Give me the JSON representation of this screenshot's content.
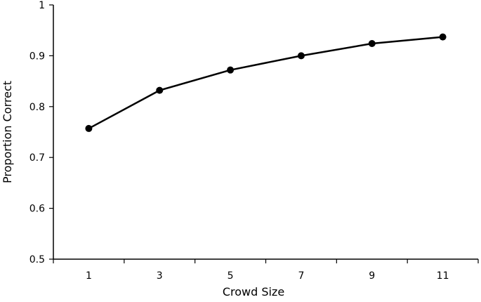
{
  "chart_data": {
    "type": "line",
    "title": "",
    "xlabel": "Crowd Size",
    "ylabel": "Proportion Correct",
    "x": [
      1,
      3,
      5,
      7,
      9,
      11
    ],
    "series": [
      {
        "values": [
          0.757,
          0.832,
          0.872,
          0.9,
          0.924,
          0.937
        ]
      }
    ],
    "ylim": [
      0.5,
      1
    ],
    "yticks": [
      0.5,
      0.6,
      0.7,
      0.8,
      0.9,
      1
    ],
    "ytick_labels": [
      "0.5",
      "0.6",
      "0.7",
      "0.8",
      "0.9",
      "1"
    ],
    "xticks": [
      1,
      3,
      5,
      7,
      9,
      11
    ],
    "xtick_labels": [
      "1",
      "3",
      "5",
      "7",
      "9",
      "11"
    ],
    "grid": false,
    "legend": "none",
    "line_color": "#000000",
    "marker_color": "#000000"
  }
}
